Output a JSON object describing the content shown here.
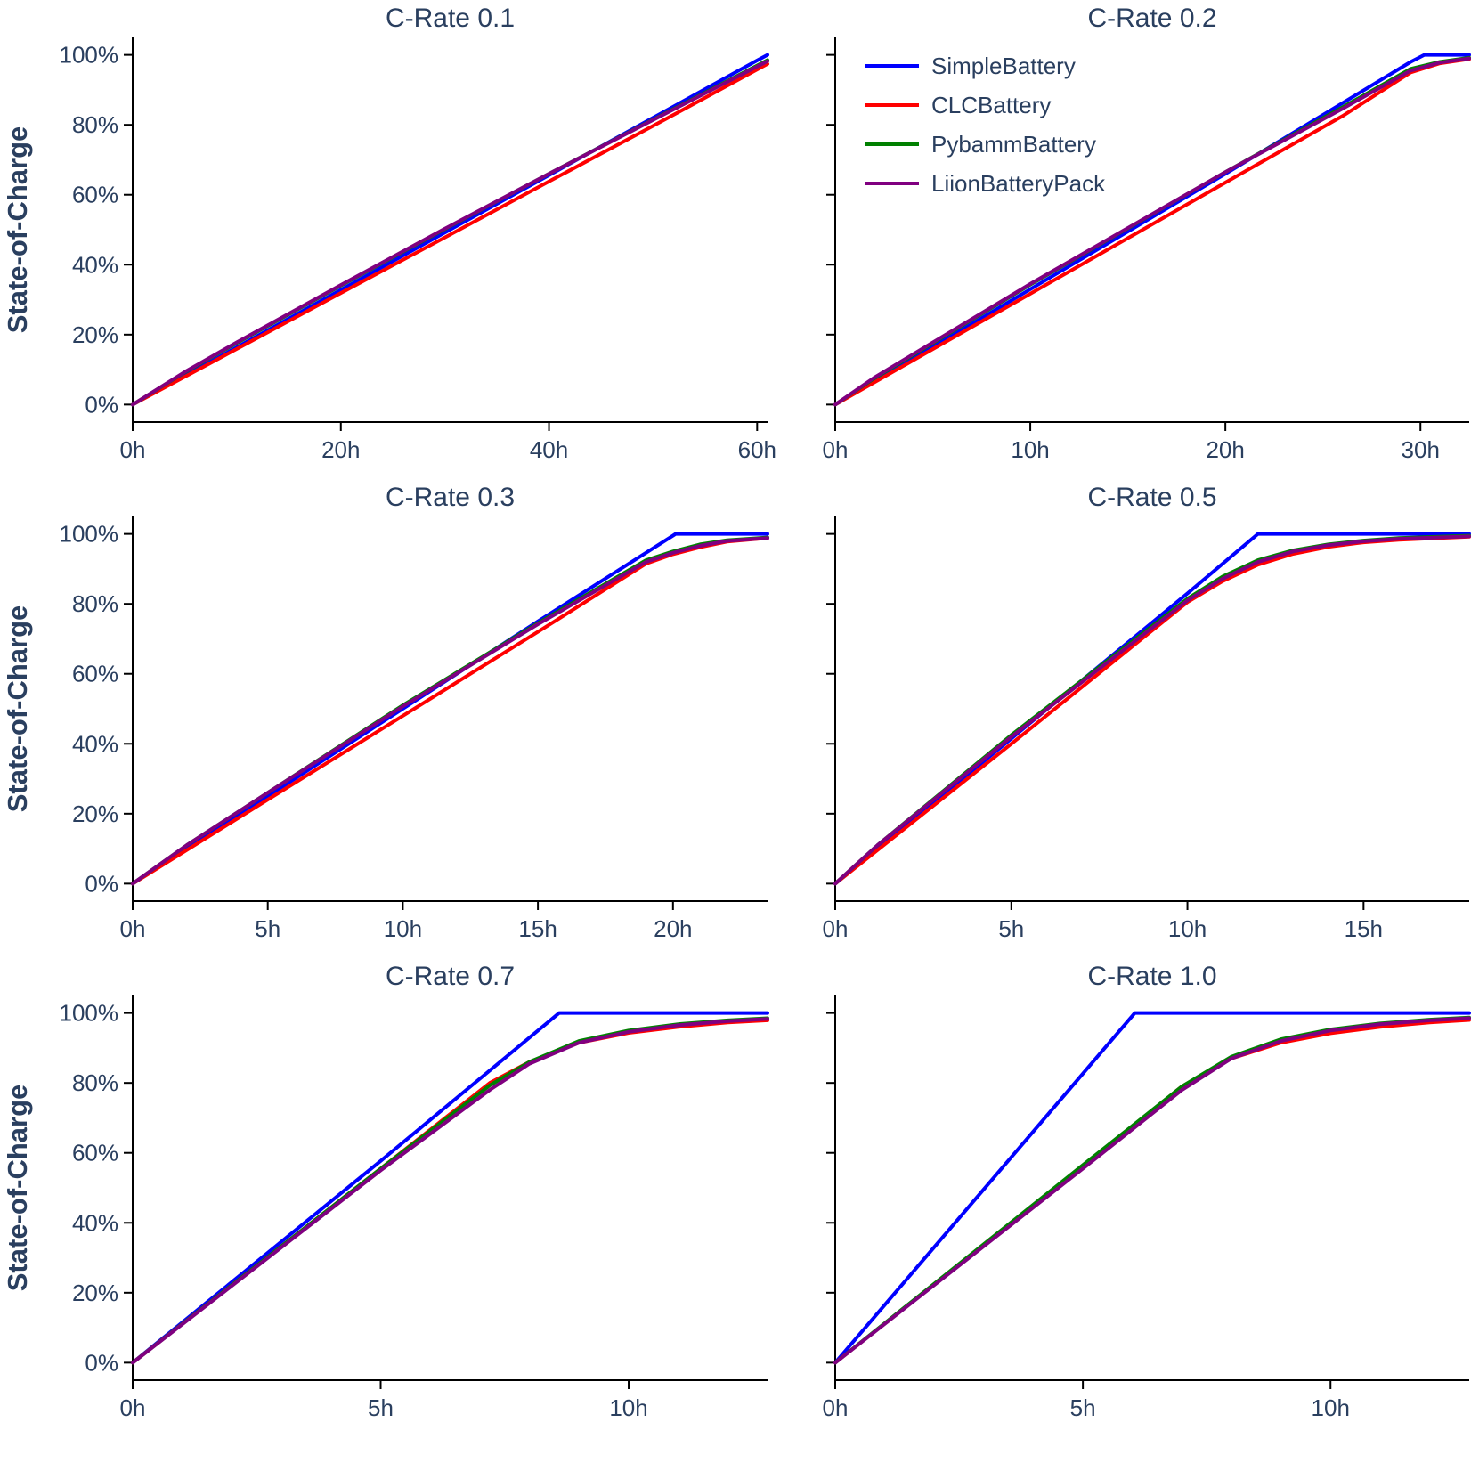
{
  "colors": {
    "SimpleBattery": "#0000ff",
    "CLCBattery": "#ff0000",
    "PybammBattery": "#008000",
    "LiionBatteryPack": "#800080",
    "axis": "#000000",
    "text": "#2a3f5f"
  },
  "legend": {
    "placement": "top-left of C-Rate 0.2 panel",
    "entries": [
      "SimpleBattery",
      "CLCBattery",
      "PybammBattery",
      "LiionBatteryPack"
    ]
  },
  "chart_data": [
    {
      "type": "line",
      "title": "C-Rate 0.1",
      "xlabel": "",
      "ylabel": "State-of-Charge",
      "xlim": [
        0,
        61
      ],
      "ylim": [
        -5,
        105
      ],
      "xticks": [
        0,
        20,
        40,
        60
      ],
      "xtick_labels": [
        "0h",
        "20h",
        "40h",
        "60h"
      ],
      "yticks": [
        0,
        20,
        40,
        60,
        80,
        100
      ],
      "ytick_labels": [
        "0%",
        "20%",
        "40%",
        "60%",
        "80%",
        "100%"
      ],
      "series": [
        {
          "name": "SimpleBattery",
          "x": [
            0,
            10,
            20,
            30,
            40,
            50,
            60,
            61
          ],
          "y": [
            0,
            16.4,
            32.8,
            49.2,
            65.6,
            82,
            98.4,
            100
          ]
        },
        {
          "name": "CLCBattery",
          "x": [
            0,
            10,
            20,
            30,
            40,
            50,
            61
          ],
          "y": [
            0,
            15.9,
            31.9,
            47.8,
            63.8,
            79.7,
            97.4
          ]
        },
        {
          "name": "PybammBattery",
          "x": [
            0,
            5,
            10,
            20,
            30,
            40,
            50,
            61
          ],
          "y": [
            0,
            9.2,
            17.6,
            34,
            50.2,
            66,
            81.5,
            98.5
          ]
        },
        {
          "name": "LiionBatteryPack",
          "x": [
            0,
            5,
            10,
            20,
            30,
            40,
            50,
            61
          ],
          "y": [
            0,
            9.3,
            17.8,
            34.2,
            50.3,
            66,
            81.4,
            98.2
          ]
        }
      ]
    },
    {
      "type": "line",
      "title": "C-Rate 0.2",
      "xlabel": "",
      "ylabel": "",
      "xlim": [
        0,
        32.5
      ],
      "ylim": [
        -5,
        105
      ],
      "xticks": [
        0,
        10,
        20,
        30
      ],
      "xtick_labels": [
        "0h",
        "10h",
        "20h",
        "30h"
      ],
      "yticks": [
        0,
        20,
        40,
        60,
        80,
        100
      ],
      "ytick_labels": [
        "",
        "",
        "",
        "",
        "",
        ""
      ],
      "series": [
        {
          "name": "SimpleBattery",
          "x": [
            0,
            10,
            20,
            29.5,
            30.2,
            32.5
          ],
          "y": [
            0,
            33,
            66,
            98,
            100,
            100
          ]
        },
        {
          "name": "CLCBattery",
          "x": [
            0,
            10,
            20,
            26,
            29.5,
            31,
            32.5
          ],
          "y": [
            0,
            31.7,
            63.5,
            82.5,
            95,
            97.6,
            98.8
          ]
        },
        {
          "name": "PybammBattery",
          "x": [
            0,
            2,
            10,
            20,
            26,
            29.5,
            31,
            32.5
          ],
          "y": [
            0,
            7.5,
            34.3,
            66.5,
            85,
            96,
            98,
            99.2
          ]
        },
        {
          "name": "LiionBatteryPack",
          "x": [
            0,
            2,
            10,
            20,
            26,
            29.5,
            31,
            32.5
          ],
          "y": [
            0,
            7.7,
            34.5,
            66.5,
            84.6,
            95.5,
            97.8,
            99
          ]
        }
      ]
    },
    {
      "type": "line",
      "title": "C-Rate 0.3",
      "xlabel": "",
      "ylabel": "State-of-Charge",
      "xlim": [
        0,
        23.5
      ],
      "ylim": [
        -5,
        105
      ],
      "xticks": [
        0,
        5,
        10,
        15,
        20
      ],
      "xtick_labels": [
        "0h",
        "5h",
        "10h",
        "15h",
        "20h"
      ],
      "yticks": [
        0,
        20,
        40,
        60,
        80,
        100
      ],
      "ytick_labels": [
        "0%",
        "20%",
        "40%",
        "60%",
        "80%",
        "100%"
      ],
      "series": [
        {
          "name": "SimpleBattery",
          "x": [
            0,
            5,
            10,
            15,
            20,
            20.1,
            23.5
          ],
          "y": [
            0,
            25,
            50,
            75,
            99.5,
            100,
            100
          ]
        },
        {
          "name": "CLCBattery",
          "x": [
            0,
            5,
            10,
            15,
            19,
            20,
            21,
            22,
            23.5
          ],
          "y": [
            0,
            24,
            48,
            72,
            91.5,
            94.2,
            96.2,
            97.8,
            98.8
          ]
        },
        {
          "name": "PybammBattery",
          "x": [
            0,
            2,
            5,
            10,
            15,
            19,
            20,
            21,
            22,
            23.5
          ],
          "y": [
            0,
            11,
            26,
            51,
            74.5,
            92.5,
            95,
            97,
            98.2,
            99
          ]
        },
        {
          "name": "LiionBatteryPack",
          "x": [
            0,
            2,
            5,
            10,
            15,
            19,
            20,
            21,
            22,
            23.5
          ],
          "y": [
            0,
            11,
            26,
            50.7,
            74.2,
            92,
            94.6,
            96.6,
            98,
            98.8
          ]
        }
      ]
    },
    {
      "type": "line",
      "title": "C-Rate 0.5",
      "xlabel": "",
      "ylabel": "",
      "xlim": [
        0,
        18
      ],
      "ylim": [
        -5,
        105
      ],
      "xticks": [
        0,
        5,
        10,
        15
      ],
      "xtick_labels": [
        "0h",
        "5h",
        "10h",
        "15h"
      ],
      "yticks": [
        0,
        20,
        40,
        60,
        80,
        100
      ],
      "ytick_labels": [
        "",
        "",
        "",
        "",
        "",
        ""
      ],
      "series": [
        {
          "name": "SimpleBattery",
          "x": [
            0,
            5,
            10,
            12,
            18
          ],
          "y": [
            0,
            41.5,
            83,
            100,
            100
          ]
        },
        {
          "name": "CLCBattery",
          "x": [
            0,
            5,
            10,
            11,
            12,
            13,
            14,
            15,
            16,
            18
          ],
          "y": [
            0,
            40,
            80.5,
            86.5,
            91.2,
            94.3,
            96.3,
            97.6,
            98.3,
            99.2
          ]
        },
        {
          "name": "PybammBattery",
          "x": [
            0,
            1.2,
            5,
            10,
            11,
            12,
            13,
            14,
            15,
            16,
            18
          ],
          "y": [
            0,
            11,
            42.5,
            81.5,
            87.8,
            92.5,
            95.3,
            97,
            98.1,
            98.8,
            99.5
          ]
        },
        {
          "name": "LiionBatteryPack",
          "x": [
            0,
            1.2,
            5,
            10,
            11,
            12,
            13,
            14,
            15,
            16,
            18
          ],
          "y": [
            0,
            11,
            42,
            81,
            87.2,
            92,
            95,
            96.8,
            97.9,
            98.6,
            99.3
          ]
        }
      ]
    },
    {
      "type": "line",
      "title": "C-Rate 0.7",
      "xlabel": "",
      "ylabel": "State-of-Charge",
      "xlim": [
        0,
        12.8
      ],
      "ylim": [
        -5,
        105
      ],
      "xticks": [
        0,
        5,
        10
      ],
      "xtick_labels": [
        "0h",
        "5h",
        "10h"
      ],
      "yticks": [
        0,
        20,
        40,
        60,
        80,
        100
      ],
      "ytick_labels": [
        "0%",
        "20%",
        "40%",
        "60%",
        "80%",
        "100%"
      ],
      "series": [
        {
          "name": "SimpleBattery",
          "x": [
            0,
            5,
            8.6,
            12.8
          ],
          "y": [
            0,
            57.7,
            100,
            100
          ]
        },
        {
          "name": "CLCBattery",
          "x": [
            0,
            5,
            7.2,
            8,
            9,
            10,
            11,
            12,
            12.8
          ],
          "y": [
            0,
            55.5,
            80,
            86,
            91.5,
            94.3,
            96,
            97.3,
            97.9
          ]
        },
        {
          "name": "PybammBattery",
          "x": [
            0,
            5,
            7.2,
            8,
            9,
            10,
            11,
            12,
            12.8
          ],
          "y": [
            0,
            55.5,
            79.3,
            86,
            92,
            95,
            96.8,
            97.9,
            98.5
          ]
        },
        {
          "name": "LiionBatteryPack",
          "x": [
            0,
            5,
            7.2,
            8,
            9,
            10,
            11,
            12,
            12.8
          ],
          "y": [
            0,
            55,
            78,
            85.5,
            91.5,
            94.6,
            96.5,
            97.7,
            98.3
          ]
        }
      ]
    },
    {
      "type": "line",
      "title": "C-Rate 1.0",
      "xlabel": "",
      "ylabel": "",
      "xlim": [
        0,
        12.8
      ],
      "ylim": [
        -5,
        105
      ],
      "xticks": [
        0,
        5,
        10
      ],
      "xtick_labels": [
        "0h",
        "5h",
        "10h"
      ],
      "yticks": [
        0,
        20,
        40,
        60,
        80,
        100
      ],
      "ytick_labels": [
        "",
        "",
        "",
        "",
        "",
        ""
      ],
      "series": [
        {
          "name": "SimpleBattery",
          "x": [
            0,
            6.05,
            12.8
          ],
          "y": [
            0,
            100,
            100
          ]
        },
        {
          "name": "CLCBattery",
          "x": [
            0,
            5,
            7,
            8,
            9,
            10,
            11,
            12,
            12.8
          ],
          "y": [
            0,
            56,
            79,
            87,
            91.5,
            94.2,
            96,
            97.3,
            98
          ]
        },
        {
          "name": "PybammBattery",
          "x": [
            0,
            5,
            7,
            8,
            9,
            10,
            11,
            12,
            12.8
          ],
          "y": [
            0,
            56.5,
            79,
            87.5,
            92.5,
            95.3,
            97,
            98.1,
            98.7
          ]
        },
        {
          "name": "LiionBatteryPack",
          "x": [
            0,
            5,
            7,
            8,
            9,
            10,
            11,
            12,
            12.8
          ],
          "y": [
            0,
            55.5,
            78,
            87,
            92,
            95,
            96.8,
            97.9,
            98.5
          ]
        }
      ]
    }
  ]
}
